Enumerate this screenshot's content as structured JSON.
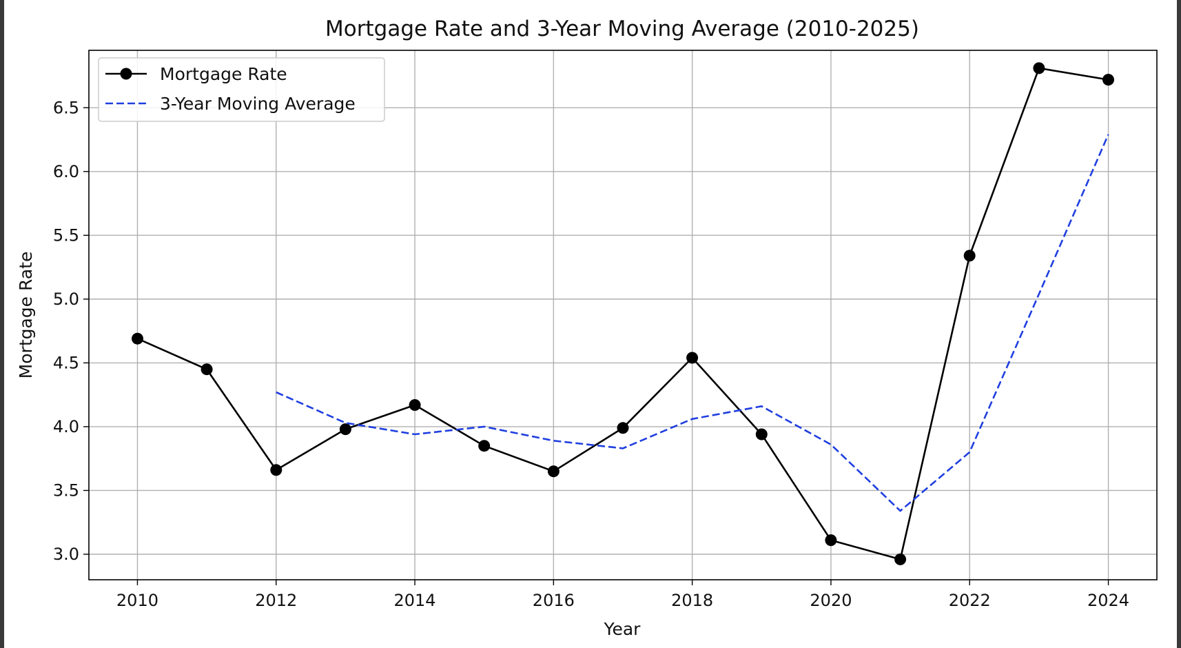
{
  "chart_data": {
    "type": "line",
    "title": "Mortgage Rate and 3-Year Moving Average (2010-2025)",
    "xlabel": "Year",
    "ylabel": "Mortgage Rate",
    "x": [
      2010,
      2011,
      2012,
      2013,
      2014,
      2015,
      2016,
      2017,
      2018,
      2019,
      2020,
      2021,
      2022,
      2023,
      2024
    ],
    "xlim": [
      2009.3,
      2024.7
    ],
    "ylim": [
      2.8,
      6.95
    ],
    "xticks": [
      2010,
      2012,
      2014,
      2016,
      2018,
      2020,
      2022,
      2024
    ],
    "yticks": [
      3.0,
      3.5,
      4.0,
      4.5,
      5.0,
      5.5,
      6.0,
      6.5
    ],
    "xtick_labels": [
      "2010",
      "2012",
      "2014",
      "2016",
      "2018",
      "2020",
      "2022",
      "2024"
    ],
    "ytick_labels": [
      "3.0",
      "3.5",
      "4.0",
      "4.5",
      "5.0",
      "5.5",
      "6.0",
      "6.5"
    ],
    "grid": true,
    "legend_position": "top-left",
    "series": [
      {
        "name": "Mortgage Rate",
        "color": "#000000",
        "style": "solid",
        "marker": "circle",
        "values": [
          4.69,
          4.45,
          3.66,
          3.98,
          4.17,
          3.85,
          3.65,
          3.99,
          4.54,
          3.94,
          3.11,
          2.96,
          5.34,
          6.81,
          6.72
        ]
      },
      {
        "name": "3-Year Moving Average",
        "color": "#1f3fe0",
        "style": "dashed",
        "marker": "none",
        "values": [
          null,
          null,
          4.27,
          4.03,
          3.94,
          4.0,
          3.89,
          3.83,
          4.06,
          4.16,
          3.86,
          3.34,
          3.8,
          5.04,
          6.29
        ]
      }
    ]
  }
}
